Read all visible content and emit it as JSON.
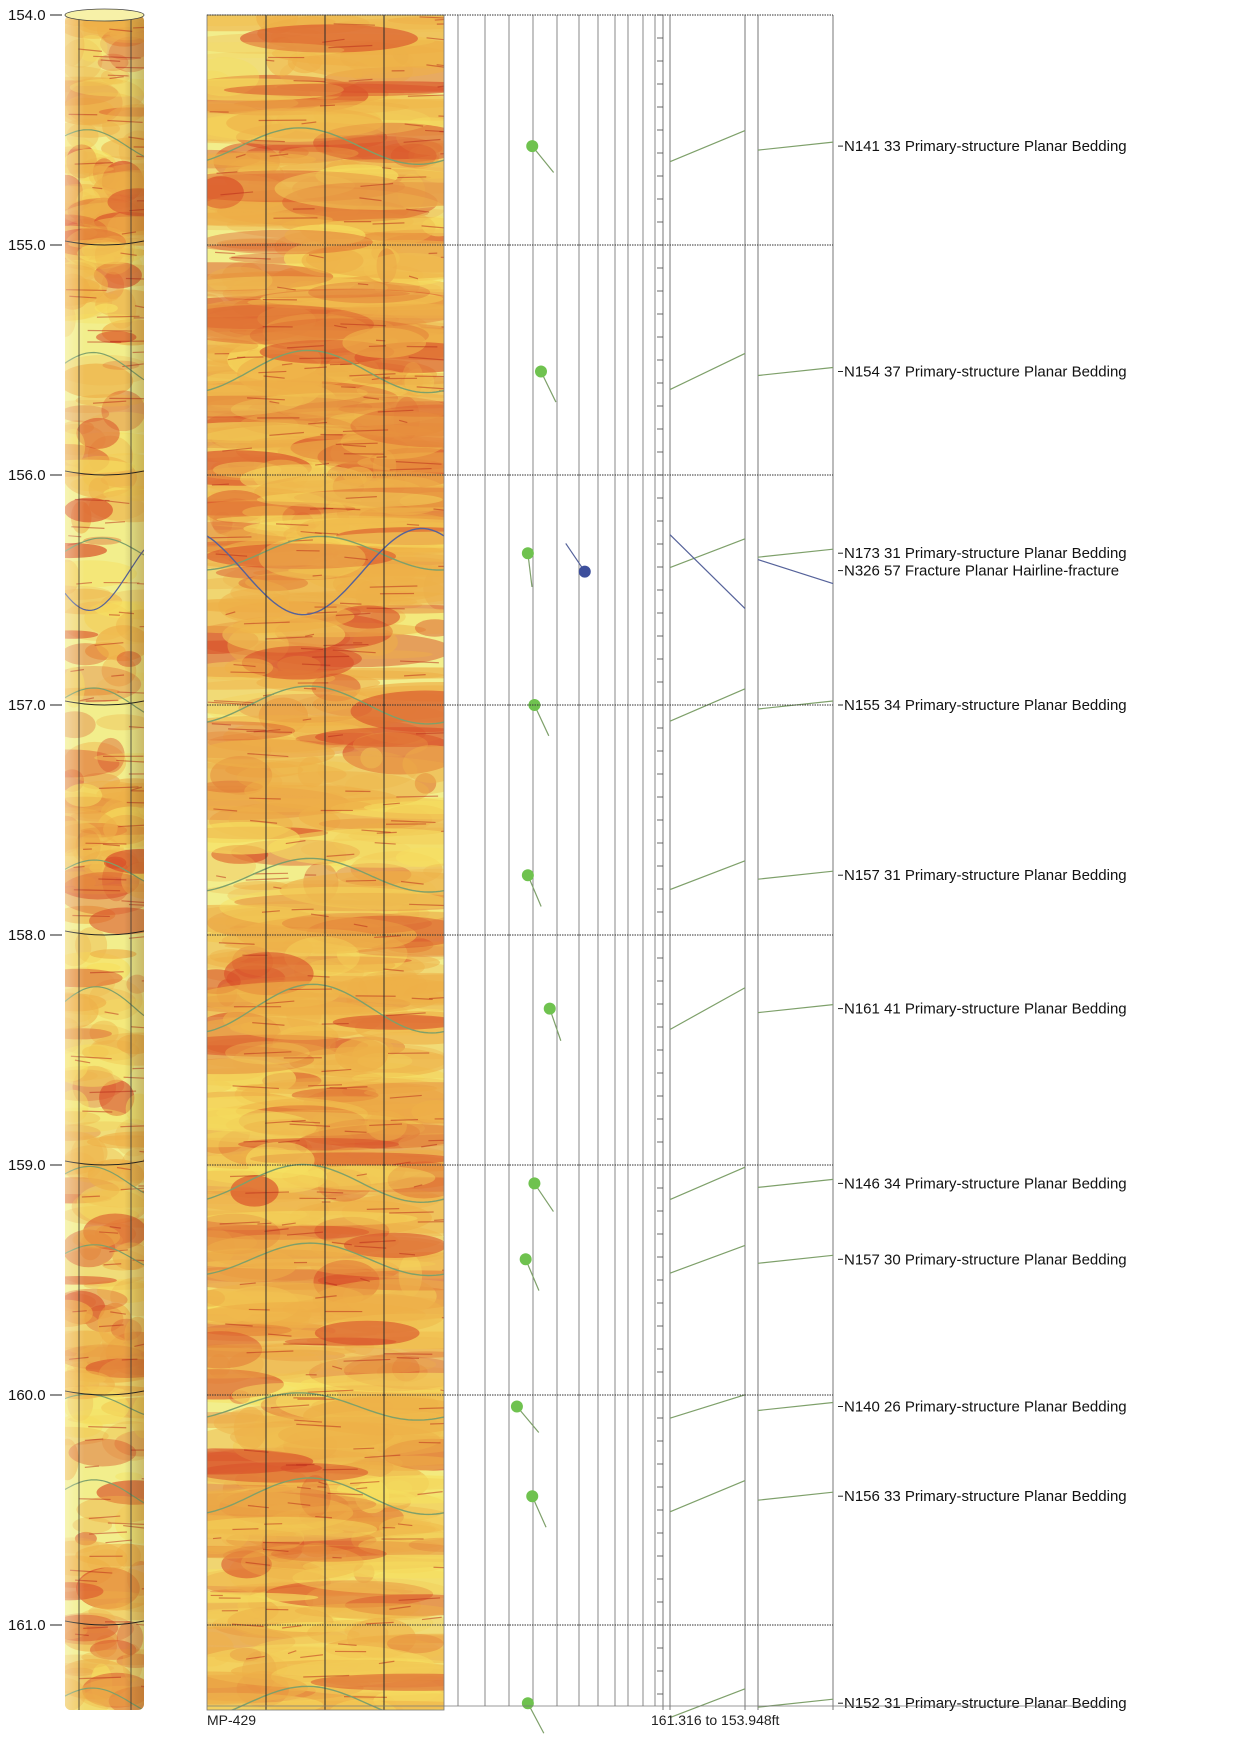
{
  "depth_labels": [
    "154.0",
    "155.0",
    "156.0",
    "157.0",
    "158.0",
    "159.0",
    "160.0",
    "161.0"
  ],
  "depth_range_ft": [
    153.948,
    161.316
  ],
  "footer": {
    "well_name": "MP-429",
    "range_text": "161.316 to 153.948ft"
  },
  "features": [
    {
      "depth": 154.57,
      "azimuth": 141,
      "dip": 33,
      "label": "N141 33 Primary-structure Planar Bedding",
      "kind": "bedding"
    },
    {
      "depth": 155.55,
      "azimuth": 154,
      "dip": 37,
      "label": "N154 37 Primary-structure Planar Bedding",
      "kind": "bedding"
    },
    {
      "depth": 156.34,
      "azimuth": 173,
      "dip": 31,
      "label": "N173 31 Primary-structure Planar Bedding",
      "kind": "bedding"
    },
    {
      "depth": 156.42,
      "azimuth": 326,
      "dip": 57,
      "label": "N326 57 Fracture Planar Hairline-fracture",
      "kind": "fracture"
    },
    {
      "depth": 157.0,
      "azimuth": 155,
      "dip": 34,
      "label": "N155 34 Primary-structure Planar Bedding",
      "kind": "bedding"
    },
    {
      "depth": 157.74,
      "azimuth": 157,
      "dip": 31,
      "label": "N157 31 Primary-structure Planar Bedding",
      "kind": "bedding"
    },
    {
      "depth": 158.32,
      "azimuth": 161,
      "dip": 41,
      "label": "N161 41 Primary-structure Planar Bedding",
      "kind": "bedding"
    },
    {
      "depth": 159.08,
      "azimuth": 146,
      "dip": 34,
      "label": "N146 34 Primary-structure Planar Bedding",
      "kind": "bedding"
    },
    {
      "depth": 159.41,
      "azimuth": 157,
      "dip": 30,
      "label": "N157 30 Primary-structure Planar Bedding",
      "kind": "bedding"
    },
    {
      "depth": 160.05,
      "azimuth": 140,
      "dip": 26,
      "label": "N140 26 Primary-structure Planar Bedding",
      "kind": "bedding"
    },
    {
      "depth": 160.44,
      "azimuth": 156,
      "dip": 33,
      "label": "N156 33 Primary-structure Planar Bedding",
      "kind": "bedding"
    },
    {
      "depth": 161.34,
      "azimuth": 152,
      "dip": 31,
      "label": "N152 31 Primary-structure Planar Bedding",
      "kind": "bedding"
    }
  ],
  "colors": {
    "bedding": "#6fc24f",
    "bedding_line": "#7ea06a",
    "fracture": "#3d4f9c",
    "fracture_line": "#55629a",
    "image_light": "#f2ee8c",
    "image_mid": "#eeb048",
    "image_dark": "#d9502a"
  },
  "icons": {
    "bedding": "green-dip-tadpole-icon",
    "fracture": "blue-dip-tadpole-icon"
  }
}
